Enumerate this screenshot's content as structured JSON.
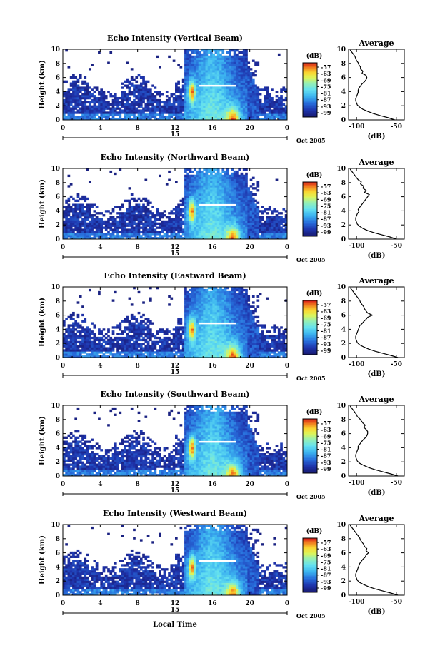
{
  "figure": {
    "xlabel": "Local Time",
    "date_label": "Oct 2005",
    "panel_colors": {
      "white": "#ffffff",
      "navy": "#1c2b8c",
      "cyan": "#4fd2f2",
      "yellow": "#f7e73a",
      "red": "#e02a1f"
    }
  },
  "chart_data": [
    {
      "type": "heatmap",
      "title": "Echo Intensity (Vertical Beam)",
      "xlabel": "",
      "ylabel": "Height (km)",
      "x_ticks": [
        "0",
        "4",
        "8",
        "12",
        "16",
        "20",
        "0"
      ],
      "day_tick": "15",
      "y_ticks": [
        "0",
        "2",
        "4",
        "6",
        "8",
        "10"
      ],
      "xlim": [
        0,
        24
      ],
      "ylim": [
        0,
        10
      ],
      "colorbar": {
        "unit": "(dB)",
        "ticks": [
          "-57",
          "-63",
          "-69",
          "-75",
          "-81",
          "-87",
          "-93",
          "-99"
        ]
      },
      "average_profile": {
        "title": "Average",
        "xlabel": "(dB)",
        "x_ticks": [
          "-100",
          "-50"
        ],
        "y_ticks": [
          "0",
          "2",
          "4",
          "6",
          "8",
          "10"
        ],
        "xlim": [
          -110,
          -40
        ],
        "ylim": [
          0,
          10
        ],
        "height": [
          0.0,
          0.3,
          0.6,
          0.9,
          1.2,
          1.5,
          1.8,
          2.1,
          2.4,
          2.7,
          3.0,
          3.3,
          3.6,
          3.9,
          4.2,
          4.5,
          4.8,
          5.1,
          5.4,
          5.7,
          6.0,
          6.3,
          6.6,
          6.9,
          7.2,
          7.5,
          7.8,
          8.1,
          8.4,
          8.7,
          9.0,
          9.3,
          9.6,
          9.9
        ],
        "db": [
          -52,
          -60,
          -70,
          -79,
          -86,
          -92,
          -96,
          -99,
          -100,
          -101,
          -101,
          -100,
          -99,
          -98,
          -98,
          -97,
          -95,
          -93,
          -90,
          -88,
          -87,
          -88,
          -93,
          -92,
          -95,
          -95,
          -97,
          -98,
          -100,
          -101,
          -102,
          -104,
          -106,
          -108
        ]
      }
    },
    {
      "type": "heatmap",
      "title": "Echo Intensity (Northward Beam)",
      "xlabel": "",
      "ylabel": "Height (km)",
      "x_ticks": [
        "0",
        "4",
        "8",
        "12",
        "16",
        "20",
        "0"
      ],
      "day_tick": "15",
      "y_ticks": [
        "0",
        "2",
        "4",
        "6",
        "8",
        "10"
      ],
      "xlim": [
        0,
        24
      ],
      "ylim": [
        0,
        10
      ],
      "colorbar": {
        "unit": "(dB)",
        "ticks": [
          "-57",
          "-63",
          "-69",
          "-75",
          "-81",
          "-87",
          "-93",
          "-99"
        ]
      },
      "average_profile": {
        "title": "Average",
        "xlabel": "(dB)",
        "x_ticks": [
          "-100",
          "-50"
        ],
        "y_ticks": [
          "0",
          "2",
          "4",
          "6",
          "8",
          "10"
        ],
        "xlim": [
          -110,
          -40
        ],
        "ylim": [
          0,
          10
        ],
        "height": [
          0.0,
          0.3,
          0.6,
          0.9,
          1.2,
          1.5,
          1.8,
          2.1,
          2.4,
          2.7,
          3.0,
          3.3,
          3.6,
          3.9,
          4.2,
          4.5,
          4.8,
          5.1,
          5.4,
          5.7,
          6.0,
          6.3,
          6.6,
          6.9,
          7.2,
          7.5,
          7.8,
          8.1,
          8.4,
          8.7,
          9.0,
          9.3,
          9.6,
          9.9
        ],
        "db": [
          -50,
          -58,
          -68,
          -78,
          -86,
          -92,
          -96,
          -99,
          -100,
          -101,
          -101,
          -100,
          -99,
          -97,
          -98,
          -96,
          -94,
          -92,
          -90,
          -88,
          -86,
          -84,
          -90,
          -88,
          -92,
          -91,
          -95,
          -94,
          -98,
          -100,
          -102,
          -104,
          -106,
          -108
        ]
      }
    },
    {
      "type": "heatmap",
      "title": "Echo Intensity (Eastward Beam)",
      "xlabel": "",
      "ylabel": "Height (km)",
      "x_ticks": [
        "0",
        "4",
        "8",
        "12",
        "16",
        "20",
        "0"
      ],
      "day_tick": "15",
      "y_ticks": [
        "0",
        "2",
        "4",
        "6",
        "8",
        "10"
      ],
      "xlim": [
        0,
        24
      ],
      "ylim": [
        0,
        10
      ],
      "colorbar": {
        "unit": "(dB)",
        "ticks": [
          "-57",
          "-63",
          "-69",
          "-75",
          "-81",
          "-87",
          "-93",
          "-99"
        ]
      },
      "average_profile": {
        "title": "Average",
        "xlabel": "(dB)",
        "x_ticks": [
          "-100",
          "-50"
        ],
        "y_ticks": [
          "0",
          "2",
          "4",
          "6",
          "8",
          "10"
        ],
        "xlim": [
          -110,
          -40
        ],
        "ylim": [
          0,
          10
        ],
        "height": [
          0.0,
          0.3,
          0.6,
          0.9,
          1.2,
          1.5,
          1.8,
          2.1,
          2.4,
          2.7,
          3.0,
          3.3,
          3.6,
          3.9,
          4.2,
          4.5,
          4.8,
          5.1,
          5.4,
          5.7,
          6.0,
          6.3,
          6.6,
          6.9,
          7.2,
          7.5,
          7.8,
          8.1,
          8.4,
          8.7,
          9.0,
          9.3,
          9.6,
          9.9
        ],
        "db": [
          -48,
          -57,
          -67,
          -77,
          -85,
          -91,
          -96,
          -99,
          -100,
          -101,
          -101,
          -100,
          -99,
          -98,
          -97,
          -96,
          -93,
          -91,
          -88,
          -86,
          -80,
          -86,
          -88,
          -90,
          -91,
          -93,
          -95,
          -96,
          -98,
          -100,
          -102,
          -104,
          -106,
          -108
        ]
      }
    },
    {
      "type": "heatmap",
      "title": "Echo Intensity (Southward Beam)",
      "xlabel": "",
      "ylabel": "Height (km)",
      "x_ticks": [
        "0",
        "4",
        "8",
        "12",
        "16",
        "20",
        "0"
      ],
      "day_tick": "15",
      "y_ticks": [
        "0",
        "2",
        "4",
        "6",
        "8",
        "10"
      ],
      "xlim": [
        0,
        24
      ],
      "ylim": [
        0,
        10
      ],
      "colorbar": {
        "unit": "(dB)",
        "ticks": [
          "-57",
          "-63",
          "-69",
          "-75",
          "-81",
          "-87",
          "-93",
          "-99"
        ]
      },
      "average_profile": {
        "title": "Average",
        "xlabel": "(dB)",
        "x_ticks": [
          "-100",
          "-50"
        ],
        "y_ticks": [
          "0",
          "2",
          "4",
          "6",
          "8",
          "10"
        ],
        "xlim": [
          -110,
          -40
        ],
        "ylim": [
          0,
          10
        ],
        "height": [
          0.0,
          0.3,
          0.6,
          0.9,
          1.2,
          1.5,
          1.8,
          2.1,
          2.4,
          2.7,
          3.0,
          3.3,
          3.6,
          3.9,
          4.2,
          4.5,
          4.8,
          5.1,
          5.4,
          5.7,
          6.0,
          6.3,
          6.6,
          6.9,
          7.2,
          7.5,
          7.8,
          8.1,
          8.4,
          8.7,
          9.0,
          9.3,
          9.6,
          9.9
        ],
        "db": [
          -48,
          -57,
          -67,
          -77,
          -85,
          -91,
          -96,
          -99,
          -100,
          -101,
          -101,
          -100,
          -99,
          -98,
          -98,
          -96,
          -94,
          -92,
          -89,
          -87,
          -86,
          -86,
          -88,
          -91,
          -89,
          -92,
          -94,
          -96,
          -99,
          -100,
          -102,
          -104,
          -106,
          -108
        ]
      }
    },
    {
      "type": "heatmap",
      "title": "Echo Intensity (Westward Beam)",
      "xlabel": "Local Time",
      "ylabel": "Height (km)",
      "x_ticks": [
        "0",
        "4",
        "8",
        "12",
        "16",
        "20",
        "0"
      ],
      "day_tick": "15",
      "y_ticks": [
        "0",
        "2",
        "4",
        "6",
        "8",
        "10"
      ],
      "xlim": [
        0,
        24
      ],
      "ylim": [
        0,
        10
      ],
      "colorbar": {
        "unit": "(dB)",
        "ticks": [
          "-57",
          "-63",
          "-69",
          "-75",
          "-81",
          "-87",
          "-93",
          "-99"
        ]
      },
      "average_profile": {
        "title": "Average",
        "xlabel": "(dB)",
        "x_ticks": [
          "-100",
          "-50"
        ],
        "y_ticks": [
          "0",
          "2",
          "4",
          "6",
          "8",
          "10"
        ],
        "xlim": [
          -110,
          -40
        ],
        "ylim": [
          0,
          10
        ],
        "height": [
          0.0,
          0.3,
          0.6,
          0.9,
          1.2,
          1.5,
          1.8,
          2.1,
          2.4,
          2.7,
          3.0,
          3.3,
          3.6,
          3.9,
          4.2,
          4.5,
          4.8,
          5.1,
          5.4,
          5.7,
          6.0,
          6.3,
          6.6,
          6.9,
          7.2,
          7.5,
          7.8,
          8.1,
          8.4,
          8.7,
          9.0,
          9.3,
          9.6,
          9.9
        ],
        "db": [
          -48,
          -57,
          -67,
          -77,
          -85,
          -91,
          -96,
          -99,
          -100,
          -101,
          -101,
          -100,
          -99,
          -98,
          -97,
          -96,
          -94,
          -92,
          -89,
          -88,
          -85,
          -88,
          -87,
          -90,
          -91,
          -93,
          -95,
          -96,
          -98,
          -100,
          -102,
          -104,
          -106,
          -108
        ]
      }
    }
  ]
}
